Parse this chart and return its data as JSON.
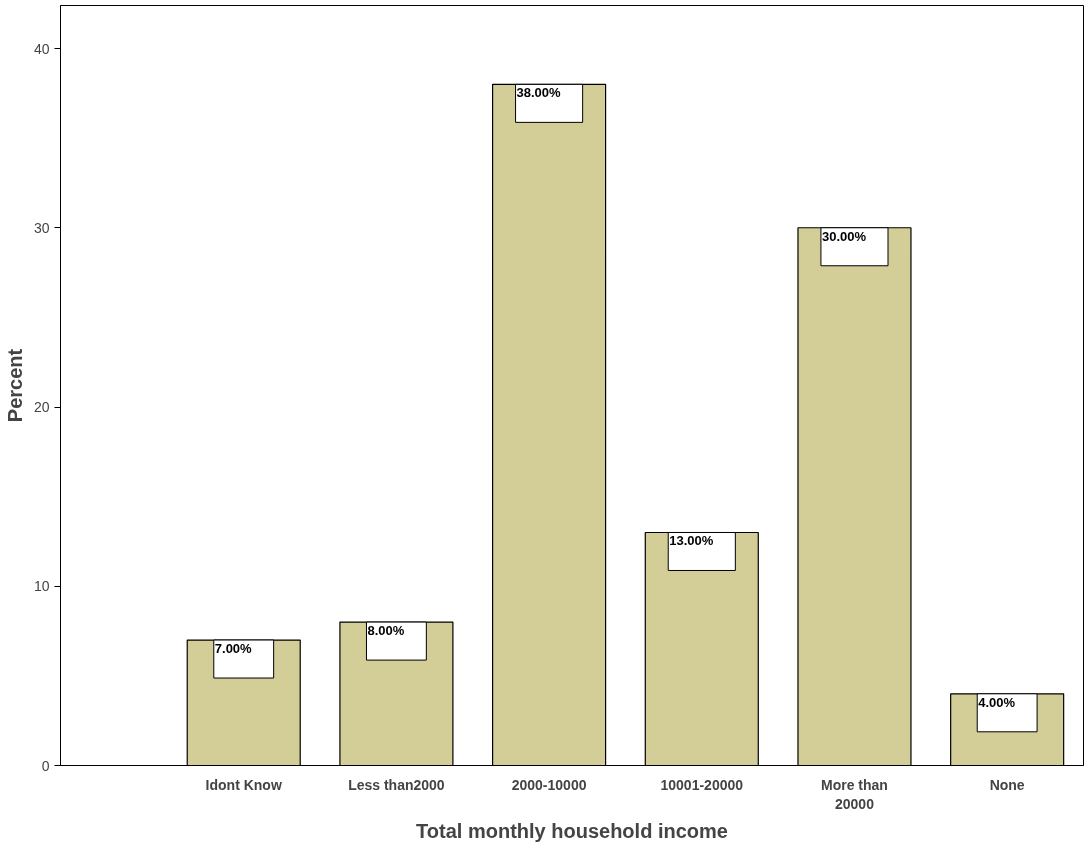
{
  "chart_data": {
    "type": "bar",
    "xlabel": "Total monthly household income",
    "ylabel": "Percent",
    "categories": [
      "Idont Know",
      "Less than2000",
      "2000-10000",
      "10001-20000",
      "More than 20000",
      "None"
    ],
    "values": [
      7,
      8,
      38,
      13,
      30,
      4
    ],
    "value_labels": [
      "7.00%",
      "8.00%",
      "38.00%",
      "13.00%",
      "30.00%",
      "4.00%"
    ],
    "color": "#d3ce98",
    "ylim": [
      0,
      42.4
    ],
    "yticks": [
      0,
      10,
      20,
      30,
      40
    ],
    "grid": false
  }
}
